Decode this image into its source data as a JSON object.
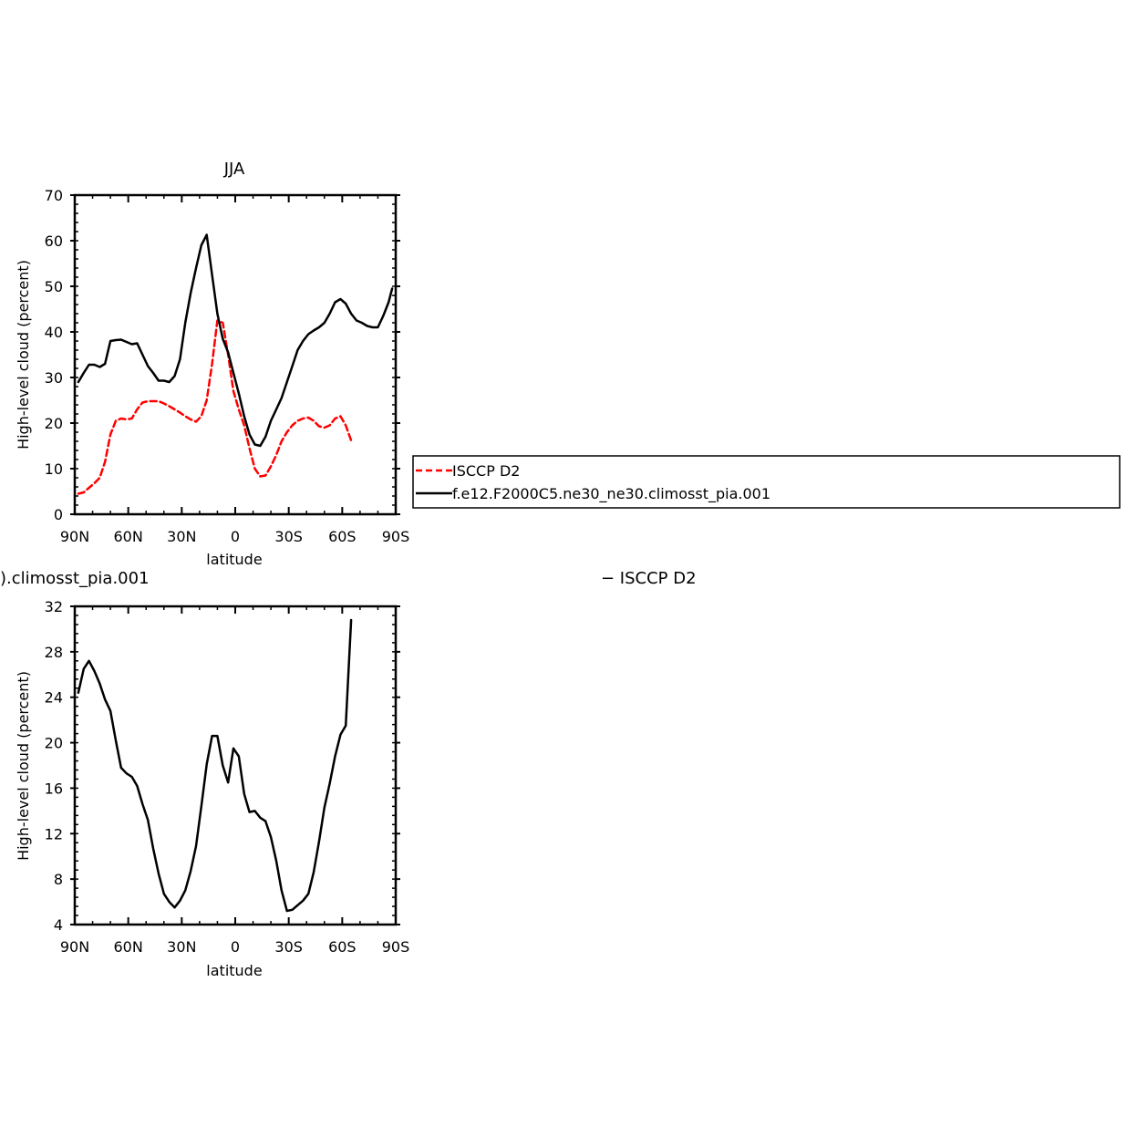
{
  "chart_data": [
    {
      "type": "line",
      "title": "JJA",
      "xlabel": "latitude",
      "ylabel": "High-level cloud (percent)",
      "xlim": [
        90,
        -90
      ],
      "ylim": [
        0,
        70
      ],
      "x_ticks": [
        {
          "value": 90,
          "label": "90N"
        },
        {
          "value": 60,
          "label": "60N"
        },
        {
          "value": 30,
          "label": "30N"
        },
        {
          "value": 0,
          "label": "0"
        },
        {
          "value": -30,
          "label": "30S"
        },
        {
          "value": -60,
          "label": "60S"
        },
        {
          "value": -90,
          "label": "90S"
        }
      ],
      "y_ticks": [
        {
          "value": 0,
          "label": "0"
        },
        {
          "value": 10,
          "label": "10"
        },
        {
          "value": 20,
          "label": "20"
        },
        {
          "value": 30,
          "label": "30"
        },
        {
          "value": 40,
          "label": "40"
        },
        {
          "value": 50,
          "label": "50"
        },
        {
          "value": 60,
          "label": "60"
        },
        {
          "value": 70,
          "label": "70"
        }
      ],
      "series": [
        {
          "name": "ISCCP D2",
          "color": "#ff0000",
          "dash": "dashed",
          "x": [
            88,
            85,
            82,
            79,
            76,
            73,
            70,
            67,
            64,
            61,
            58,
            55,
            52,
            49,
            46,
            43,
            40,
            37,
            34,
            31,
            28,
            25,
            22,
            19,
            16,
            13,
            10,
            7,
            4,
            1,
            -2,
            -5,
            -8,
            -11,
            -14,
            -17,
            -20,
            -23,
            -26,
            -29,
            -32,
            -35,
            -38,
            -41,
            -44,
            -47,
            -50,
            -53,
            -56,
            -59,
            -62,
            -65
          ],
          "y": [
            4.5,
            4.8,
            5.8,
            6.8,
            8.0,
            11.5,
            17.5,
            20.5,
            21.0,
            20.8,
            21.0,
            23.0,
            24.5,
            24.8,
            24.8,
            24.8,
            24.3,
            23.7,
            23.0,
            22.3,
            21.5,
            20.8,
            20.3,
            21.5,
            25.0,
            33.0,
            42.5,
            42.0,
            35.0,
            27.0,
            23.0,
            19.5,
            14.5,
            10.0,
            8.3,
            8.5,
            10.5,
            13.0,
            16.0,
            18.0,
            19.5,
            20.5,
            21.0,
            21.2,
            20.5,
            19.3,
            19.0,
            19.5,
            21.0,
            21.5,
            19.5,
            16.2
          ]
        },
        {
          "name": "f.e12.F2000C5.ne30_ne30.climosst_pia.001",
          "color": "#000000",
          "dash": "solid",
          "x": [
            88,
            85,
            82,
            79,
            76,
            73,
            70,
            67,
            64,
            61,
            58,
            55,
            52,
            49,
            46,
            43,
            40,
            37,
            34,
            31,
            28,
            25,
            22,
            19,
            16,
            13,
            10,
            7,
            4,
            1,
            -2,
            -5,
            -8,
            -11,
            -14,
            -17,
            -20,
            -23,
            -26,
            -29,
            -32,
            -35,
            -38,
            -41,
            -44,
            -47,
            -50,
            -53,
            -56,
            -59,
            -62,
            -65,
            -68,
            -71,
            -74,
            -77,
            -80,
            -83,
            -86,
            -88
          ],
          "y": [
            29.0,
            31.0,
            32.8,
            32.8,
            32.3,
            33.0,
            38.0,
            38.2,
            38.3,
            37.8,
            37.3,
            37.5,
            35.0,
            32.5,
            31.0,
            29.3,
            29.3,
            29.0,
            30.3,
            34.0,
            42.0,
            48.5,
            54.0,
            59.0,
            61.3,
            52.5,
            44.0,
            38.5,
            35.5,
            31.0,
            26.5,
            21.5,
            17.5,
            15.3,
            15.0,
            17.0,
            20.5,
            23.0,
            25.5,
            29.0,
            32.5,
            36.0,
            38.0,
            39.5,
            40.3,
            41.0,
            42.0,
            44.0,
            46.5,
            47.2,
            46.2,
            44.0,
            42.5,
            42.0,
            41.3,
            41.0,
            41.0,
            43.5,
            46.5,
            49.5
          ]
        }
      ],
      "legend": {
        "placement": "right",
        "entries": [
          "ISCCP D2",
          "f.e12.F2000C5.ne30_ne30.climosst_pia.001"
        ]
      }
    },
    {
      "type": "line",
      "title": ").climosst_pia.001",
      "title_right": "− ISCCP D2",
      "xlabel": "latitude",
      "ylabel": "High-level cloud (percent)",
      "xlim": [
        90,
        -90
      ],
      "ylim": [
        4,
        32
      ],
      "x_ticks": [
        {
          "value": 90,
          "label": "90N"
        },
        {
          "value": 60,
          "label": "60N"
        },
        {
          "value": 30,
          "label": "30N"
        },
        {
          "value": 0,
          "label": "0"
        },
        {
          "value": -30,
          "label": "30S"
        },
        {
          "value": -60,
          "label": "60S"
        },
        {
          "value": -90,
          "label": "90S"
        }
      ],
      "y_ticks": [
        {
          "value": 4,
          "label": "4"
        },
        {
          "value": 8,
          "label": "8"
        },
        {
          "value": 12,
          "label": "12"
        },
        {
          "value": 16,
          "label": "16"
        },
        {
          "value": 20,
          "label": "20"
        },
        {
          "value": 24,
          "label": "24"
        },
        {
          "value": 28,
          "label": "28"
        },
        {
          "value": 32,
          "label": "32"
        }
      ],
      "series": [
        {
          "color": "#000000",
          "dash": "solid",
          "x": [
            88,
            85,
            82,
            79,
            76,
            73,
            70,
            67,
            64,
            61,
            58,
            55,
            52,
            49,
            46,
            43,
            40,
            37,
            34,
            31,
            28,
            25,
            22,
            19,
            16,
            13,
            10,
            7,
            4,
            1,
            -2,
            -5,
            -8,
            -11,
            -14,
            -17,
            -20,
            -23,
            -26,
            -29,
            -32,
            -35,
            -38,
            -41,
            -44,
            -47,
            -50,
            -53,
            -56,
            -59,
            -62,
            -65
          ],
          "y": [
            24.4,
            26.5,
            27.2,
            26.3,
            25.2,
            23.8,
            22.8,
            20.2,
            17.8,
            17.3,
            17.0,
            16.2,
            14.6,
            13.2,
            10.7,
            8.5,
            6.7,
            6.0,
            5.5,
            6.1,
            7.0,
            8.7,
            10.9,
            14.4,
            18.1,
            20.6,
            20.6,
            18.0,
            16.5,
            19.5,
            18.8,
            15.5,
            13.9,
            14.0,
            13.4,
            13.1,
            11.7,
            9.6,
            7.0,
            5.2,
            5.3,
            5.7,
            6.1,
            6.7,
            8.6,
            11.3,
            14.3,
            16.4,
            18.8,
            20.7,
            21.5,
            30.8
          ]
        }
      ]
    }
  ]
}
